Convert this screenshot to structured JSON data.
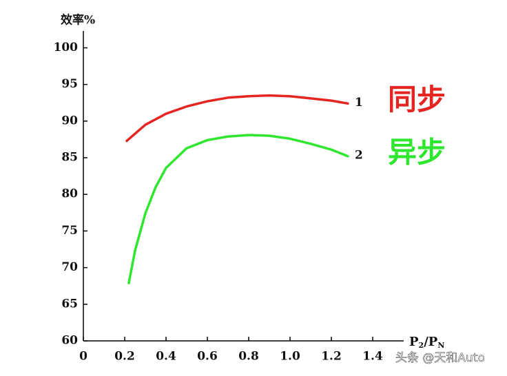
{
  "chart_data": {
    "type": "line",
    "ylabel": "效率%",
    "xlabel": [
      "P",
      "2",
      "/P",
      "N"
    ],
    "xlim": [
      0,
      1.55
    ],
    "ylim": [
      60,
      102.3
    ],
    "xticks": [
      0,
      0.2,
      0.4,
      0.6,
      0.8,
      {
        "value": 1,
        "label": "1.0"
      },
      1.2,
      1.4
    ],
    "yticks": [
      60,
      65,
      70,
      75,
      80,
      85,
      90,
      95,
      100
    ],
    "series": [
      {
        "name": "1",
        "label": "同步",
        "color": "#e52521",
        "x": [
          0.21,
          0.3,
          0.4,
          0.5,
          0.6,
          0.7,
          0.8,
          0.9,
          1.0,
          1.1,
          1.2,
          1.28
        ],
        "values": [
          87.3,
          89.5,
          91.0,
          92.0,
          92.7,
          93.2,
          93.4,
          93.5,
          93.4,
          93.1,
          92.8,
          92.4
        ]
      },
      {
        "name": "2",
        "label": "异步",
        "color": "#2ee62e",
        "x": [
          0.22,
          0.25,
          0.3,
          0.35,
          0.4,
          0.5,
          0.6,
          0.7,
          0.8,
          0.9,
          1.0,
          1.1,
          1.2,
          1.28
        ],
        "values": [
          67.9,
          72.3,
          77.4,
          81.0,
          83.6,
          86.3,
          87.4,
          87.9,
          88.1,
          88.0,
          87.6,
          86.9,
          86.1,
          85.2
        ]
      }
    ],
    "watermark": "头条 @天和Auto"
  }
}
